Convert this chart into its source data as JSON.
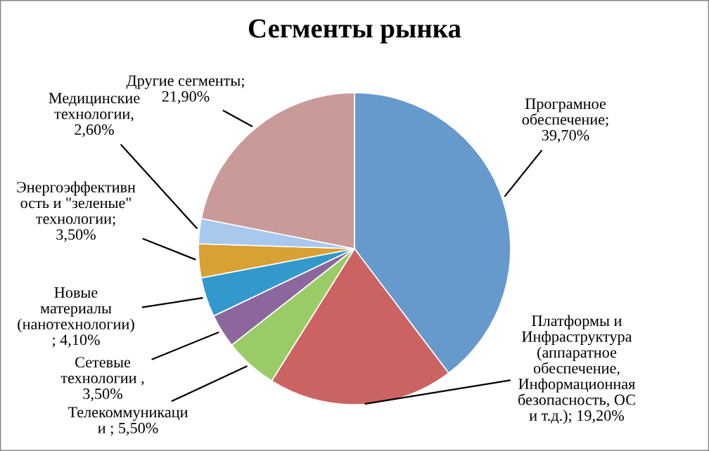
{
  "chart_data": {
    "type": "pie",
    "title": "Сегменты рынка",
    "categories": [
      "Програмное\nобеспечение;\n39,70%",
      "Платформы и\nИнфраструктура\n(аппаратное\nобеспечение,\nИнформационная\nбезопасность, ОС\nи т.д.); 19,20%",
      "Телекоммуникаци\nи ; 5,50%",
      "Сетевые\nтехнологии ,\n3,50%",
      "Новые\nматериалы\n(нанотехнологии)\n; 4,10%",
      "Энергоэффективн\nость и \"зеленые\"\nтехнологии;\n3,50%",
      "Медицинские\nтехнологии,\n2,60%",
      "Другие сегменты;\n21,90%"
    ],
    "values": [
      39.7,
      19.2,
      5.5,
      3.5,
      4.1,
      3.5,
      2.6,
      21.9
    ],
    "colors": [
      "#6699cc",
      "#cc6363",
      "#99cc66",
      "#8c679e",
      "#3399cc",
      "#d9a036",
      "#a8c8ee",
      "#c99a97"
    ],
    "legend": false
  }
}
